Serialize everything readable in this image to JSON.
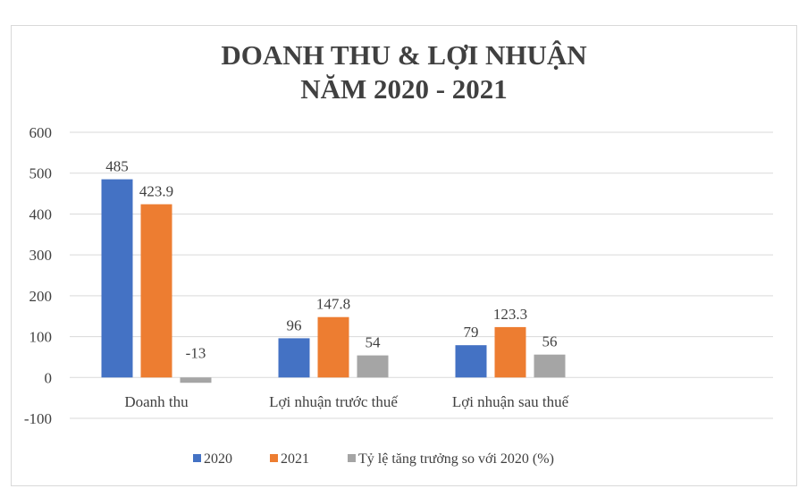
{
  "chart_data": {
    "type": "bar",
    "title_lines": [
      "DOANH THU & LỢI NHUẬN",
      "NĂM 2020 - 2021"
    ],
    "categories": [
      "Doanh thu",
      "Lợi nhuận trước thuế",
      "Lợi nhuận sau thuế"
    ],
    "series": [
      {
        "name": "2020",
        "color": "#4472c4",
        "values": [
          485,
          96,
          79
        ]
      },
      {
        "name": "2021",
        "color": "#ed7d31",
        "values": [
          423.9,
          147.8,
          123.3
        ]
      },
      {
        "name": "Tỷ lệ tăng trưởng so với 2020 (%)",
        "color": "#a5a5a5",
        "values": [
          -13,
          54,
          56
        ]
      }
    ],
    "data_labels": [
      [
        "485",
        "96",
        "79"
      ],
      [
        "423.9",
        "147.8",
        "123.3"
      ],
      [
        "-13",
        "54",
        "56"
      ]
    ],
    "ylim": [
      -100,
      600
    ],
    "yticks": [
      600,
      500,
      400,
      300,
      200,
      100,
      0,
      -100
    ],
    "ytick_labels": [
      "600",
      "500",
      "400",
      "300",
      "200",
      "100",
      "0",
      "-100"
    ],
    "grid": true,
    "legend_position": "bottom"
  }
}
